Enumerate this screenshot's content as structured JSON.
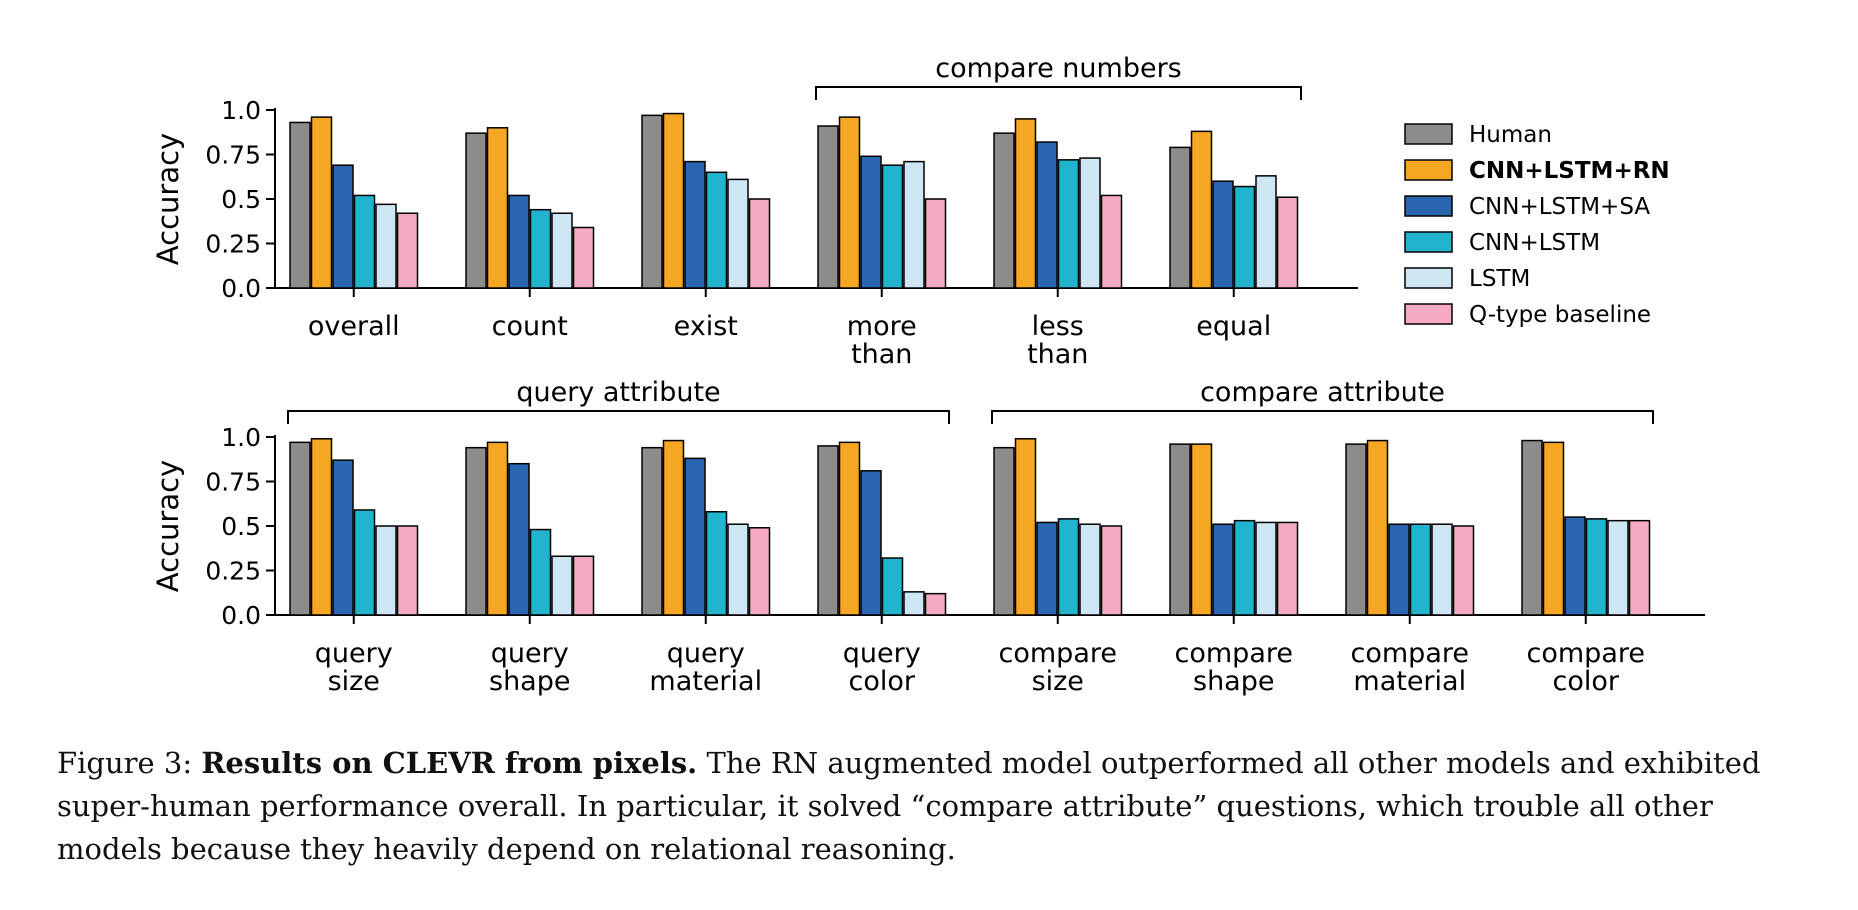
{
  "caption": {
    "label": "Figure 3:",
    "title": "Results on CLEVR from pixels.",
    "text": "The RN augmented model outperformed all other models and exhibited super-human performance overall. In particular, it solved “compare attribute” questions, which trouble all other models because they heavily depend on relational reasoning."
  },
  "legend": {
    "placement": "right",
    "entries": [
      {
        "name": "Human",
        "color": "#8c8c8c",
        "bold": false
      },
      {
        "name": "CNN+LSTM+RN",
        "color": "#f5a623",
        "bold": true
      },
      {
        "name": "CNN+LSTM+SA",
        "color": "#2a66b0",
        "bold": false
      },
      {
        "name": "CNN+LSTM",
        "color": "#22b4cf",
        "bold": false
      },
      {
        "name": "LSTM",
        "color": "#cfe6f4",
        "bold": false
      },
      {
        "name": "Q-type baseline",
        "color": "#f6a9c2",
        "bold": false
      }
    ]
  },
  "chart_data": [
    {
      "type": "bar",
      "ylabel": "Accuracy",
      "ylim": [
        0,
        1.0
      ],
      "yticks": [
        "0.0",
        "0.25",
        "0.5",
        "0.75",
        "1.0"
      ],
      "categories": [
        [
          "overall"
        ],
        [
          "count"
        ],
        [
          "exist"
        ],
        [
          "more",
          "than"
        ],
        [
          "less",
          "than"
        ],
        [
          "equal"
        ]
      ],
      "groups": [
        {
          "label": "compare numbers",
          "from": 3,
          "to": 5
        }
      ],
      "series": [
        {
          "name": "Human",
          "values": [
            0.93,
            0.87,
            0.97,
            0.91,
            0.87,
            0.79
          ]
        },
        {
          "name": "CNN+LSTM+RN",
          "values": [
            0.96,
            0.9,
            0.98,
            0.96,
            0.95,
            0.88
          ]
        },
        {
          "name": "CNN+LSTM+SA",
          "values": [
            0.69,
            0.52,
            0.71,
            0.74,
            0.82,
            0.6
          ]
        },
        {
          "name": "CNN+LSTM",
          "values": [
            0.52,
            0.44,
            0.65,
            0.69,
            0.72,
            0.57
          ]
        },
        {
          "name": "LSTM",
          "values": [
            0.47,
            0.42,
            0.61,
            0.71,
            0.73,
            0.63
          ]
        },
        {
          "name": "Q-type baseline",
          "values": [
            0.42,
            0.34,
            0.5,
            0.5,
            0.52,
            0.51
          ]
        }
      ]
    },
    {
      "type": "bar",
      "ylabel": "Accuracy",
      "ylim": [
        0,
        1.0
      ],
      "yticks": [
        "0.0",
        "0.25",
        "0.5",
        "0.75",
        "1.0"
      ],
      "categories": [
        [
          "query",
          "size"
        ],
        [
          "query",
          "shape"
        ],
        [
          "query",
          "material"
        ],
        [
          "query",
          "color"
        ],
        [
          "compare",
          "size"
        ],
        [
          "compare",
          "shape"
        ],
        [
          "compare",
          "material"
        ],
        [
          "compare",
          "color"
        ]
      ],
      "groups": [
        {
          "label": "query attribute",
          "from": 0,
          "to": 3
        },
        {
          "label": "compare attribute",
          "from": 4,
          "to": 7
        }
      ],
      "series": [
        {
          "name": "Human",
          "values": [
            0.97,
            0.94,
            0.94,
            0.95,
            0.94,
            0.96,
            0.96,
            0.98
          ]
        },
        {
          "name": "CNN+LSTM+RN",
          "values": [
            0.99,
            0.97,
            0.98,
            0.97,
            0.99,
            0.96,
            0.98,
            0.97
          ]
        },
        {
          "name": "CNN+LSTM+SA",
          "values": [
            0.87,
            0.85,
            0.88,
            0.81,
            0.52,
            0.51,
            0.51,
            0.55
          ]
        },
        {
          "name": "CNN+LSTM",
          "values": [
            0.59,
            0.48,
            0.58,
            0.32,
            0.54,
            0.53,
            0.51,
            0.54
          ]
        },
        {
          "name": "LSTM",
          "values": [
            0.5,
            0.33,
            0.51,
            0.13,
            0.51,
            0.52,
            0.51,
            0.53
          ]
        },
        {
          "name": "Q-type baseline",
          "values": [
            0.5,
            0.33,
            0.49,
            0.12,
            0.5,
            0.52,
            0.5,
            0.53
          ]
        }
      ]
    }
  ]
}
